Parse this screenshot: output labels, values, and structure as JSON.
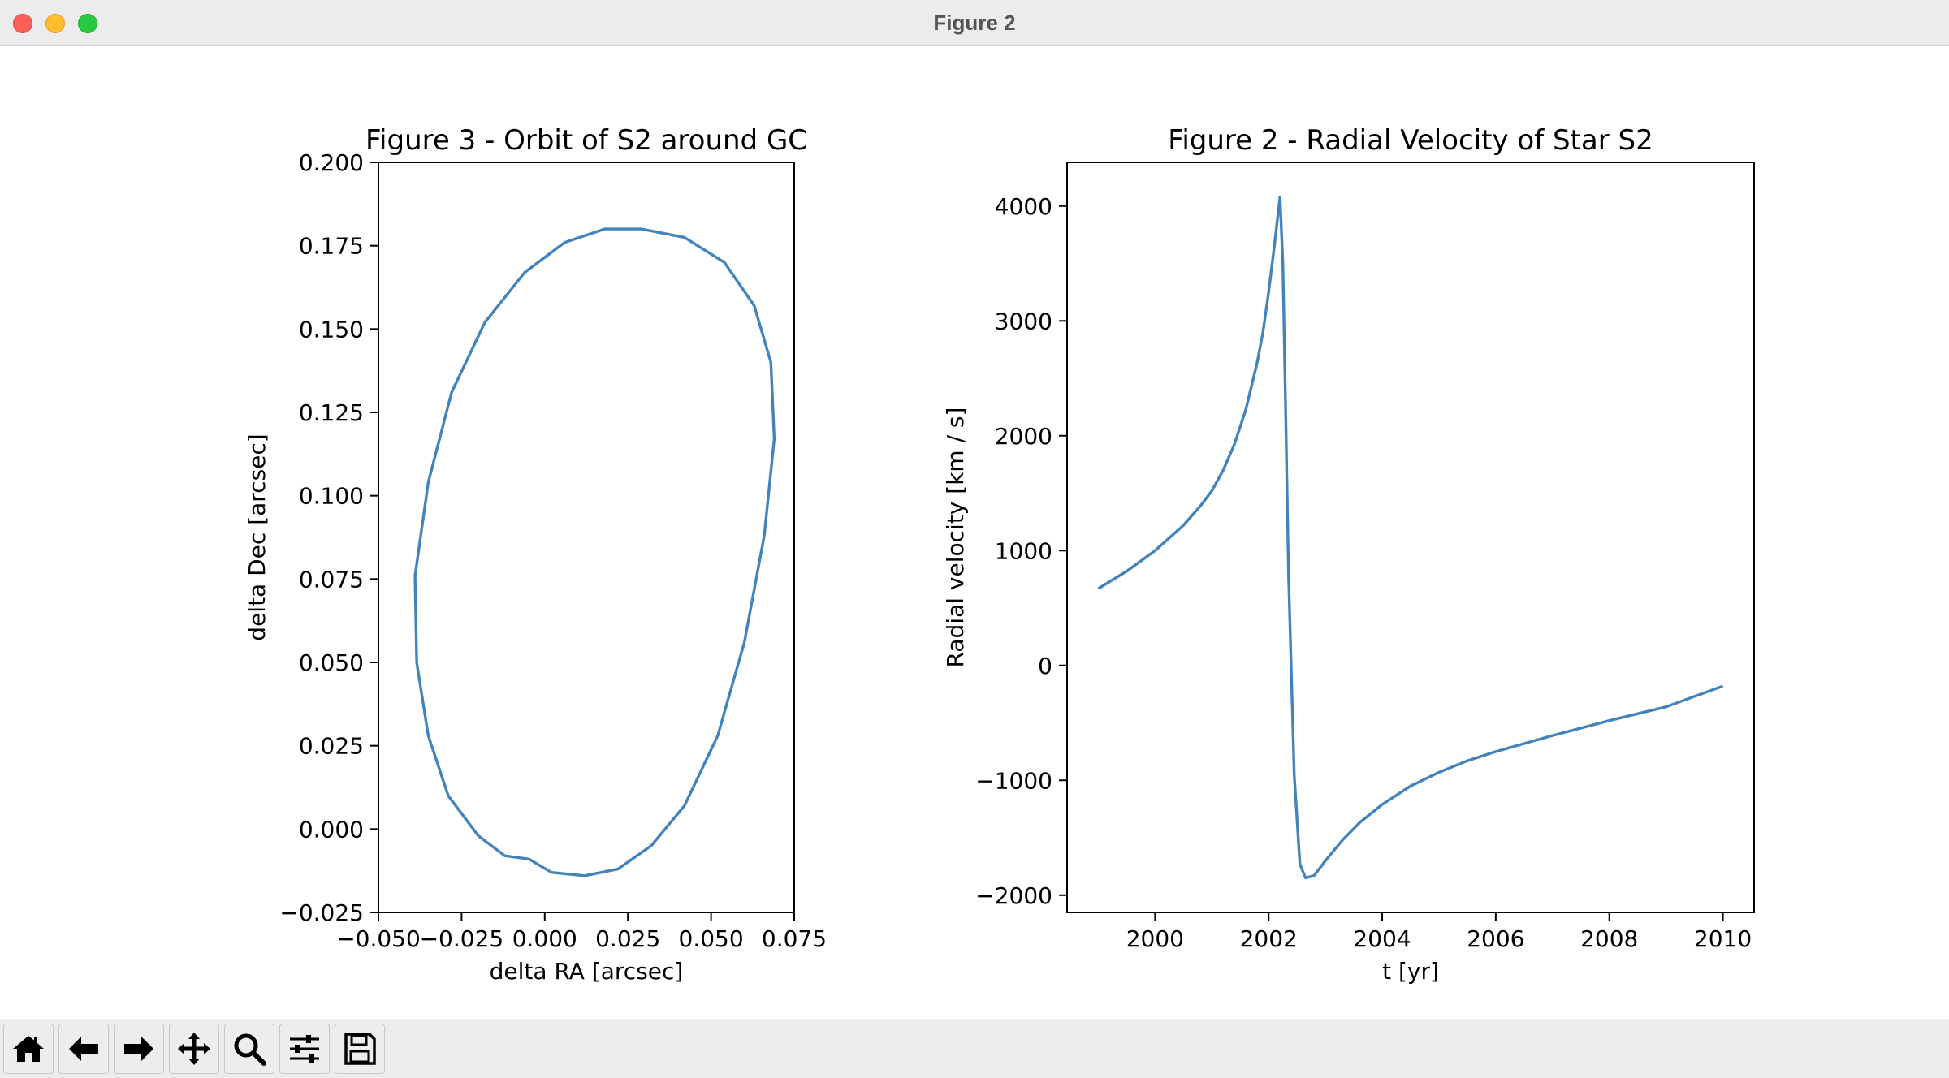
{
  "window": {
    "title": "Figure 2"
  },
  "toolbar": {
    "buttons": [
      {
        "name": "home-button",
        "icon": "home-icon"
      },
      {
        "name": "back-button",
        "icon": "arrow-left-icon"
      },
      {
        "name": "forward-button",
        "icon": "arrow-right-icon"
      },
      {
        "name": "pan-button",
        "icon": "move-icon"
      },
      {
        "name": "zoom-button",
        "icon": "magnifier-icon"
      },
      {
        "name": "configure-subplots-button",
        "icon": "sliders-icon"
      },
      {
        "name": "save-button",
        "icon": "floppy-disk-icon"
      }
    ]
  },
  "chart_data": [
    {
      "type": "line",
      "title": "Figure 3 - Orbit of S2 around GC",
      "xlabel": "delta RA [arcsec]",
      "ylabel": "delta Dec [arcsec]",
      "xlim": [
        -0.05,
        0.075
      ],
      "ylim": [
        -0.025,
        0.2
      ],
      "xticks": [
        "−0.050",
        "−0.025",
        "0.000",
        "0.025",
        "0.050",
        "0.075"
      ],
      "yticks": [
        "−0.025",
        "0.000",
        "0.025",
        "0.050",
        "0.075",
        "0.100",
        "0.125",
        "0.150",
        "0.175",
        "0.200"
      ],
      "grid": false,
      "color": "#4383bb",
      "series": [
        {
          "x": [
            -0.0047,
            0.002,
            0.012,
            0.022,
            0.032,
            0.042,
            0.052,
            0.06,
            0.066,
            0.069,
            0.068,
            0.063,
            0.054,
            0.042,
            0.029,
            0.018,
            0.006,
            -0.006,
            -0.018,
            -0.028,
            -0.035,
            -0.039,
            -0.0385,
            -0.035,
            -0.029,
            -0.02,
            -0.012,
            -0.0047
          ],
          "y": [
            -0.009,
            -0.013,
            -0.014,
            -0.012,
            -0.005,
            0.007,
            0.028,
            0.056,
            0.088,
            0.117,
            0.14,
            0.157,
            0.17,
            0.1775,
            0.18,
            0.18,
            0.176,
            0.167,
            0.152,
            0.131,
            0.104,
            0.076,
            0.05,
            0.028,
            0.01,
            -0.002,
            -0.008,
            -0.009
          ]
        }
      ]
    },
    {
      "type": "line",
      "title": "Figure 2 - Radial Velocity of Star S2",
      "xlabel": "t [yr]",
      "ylabel": "Radial velocity [km / s]",
      "xlim": [
        1998.45,
        2010.55
      ],
      "ylim": [
        -2150,
        4380
      ],
      "xticks": [
        "2000",
        "2002",
        "2004",
        "2006",
        "2008",
        "2010"
      ],
      "yticks": [
        "−2000",
        "−1000",
        "0",
        "1000",
        "2000",
        "3000",
        "4000"
      ],
      "grid": false,
      "color": "#4383bb",
      "series": [
        {
          "x": [
            1999.0,
            1999.5,
            2000.0,
            2000.5,
            2000.8,
            2001.0,
            2001.2,
            2001.4,
            2001.6,
            2001.8,
            2001.9,
            2002.0,
            2002.1,
            2002.2,
            2002.25,
            2002.3,
            2002.35,
            2002.45,
            2002.55,
            2002.65,
            2002.8,
            2003.0,
            2003.3,
            2003.6,
            2004.0,
            2004.5,
            2005.0,
            2005.5,
            2006.0,
            2007.0,
            2008.0,
            2009.0,
            2010.0
          ],
          "y": [
            670,
            820,
            1000,
            1220,
            1390,
            1520,
            1700,
            1930,
            2230,
            2640,
            2900,
            3250,
            3650,
            4080,
            3500,
            2200,
            800,
            -950,
            -1730,
            -1850,
            -1830,
            -1700,
            -1520,
            -1370,
            -1210,
            -1050,
            -930,
            -830,
            -750,
            -610,
            -480,
            -360,
            -180
          ]
        }
      ]
    }
  ]
}
